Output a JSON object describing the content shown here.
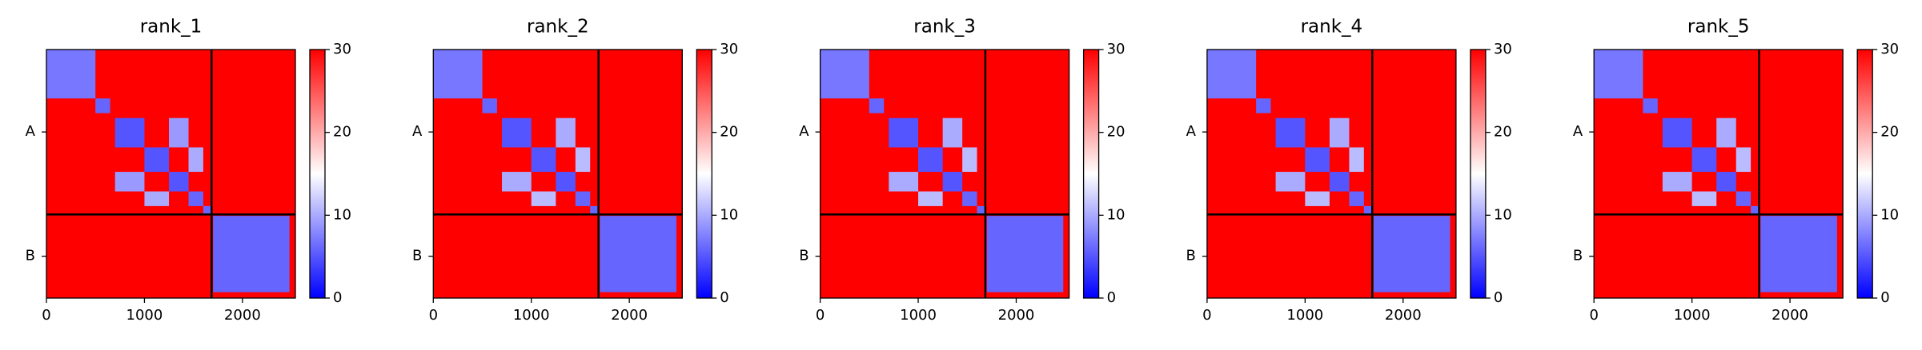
{
  "chart_data": [
    {
      "type": "heatmap",
      "title": "rank_1",
      "colormap": [
        "#0000ff",
        "#ffffff",
        "#ff0000"
      ],
      "clim": [
        0,
        30
      ],
      "cticks": [
        0,
        10,
        20,
        30
      ],
      "xlim": [
        0,
        2540
      ],
      "xticks": [
        0,
        1000,
        2000
      ],
      "chains": [
        {
          "name": "A",
          "range": [
            0,
            1685
          ]
        },
        {
          "name": "B",
          "range": [
            1685,
            2540
          ]
        }
      ],
      "background": 30,
      "blocks": [
        {
          "x": [
            0,
            500
          ],
          "y": [
            0,
            500
          ],
          "value": 7
        },
        {
          "x": [
            500,
            650
          ],
          "y": [
            500,
            650
          ],
          "value": 6
        },
        {
          "x": [
            700,
            1000
          ],
          "y": [
            700,
            1000
          ],
          "value": 5
        },
        {
          "x": [
            1000,
            1250
          ],
          "y": [
            1000,
            1250
          ],
          "value": 5
        },
        {
          "x": [
            1250,
            1450
          ],
          "y": [
            1250,
            1450
          ],
          "value": 5
        },
        {
          "x": [
            1450,
            1600
          ],
          "y": [
            1450,
            1600
          ],
          "value": 6
        },
        {
          "x": [
            1600,
            1685
          ],
          "y": [
            1600,
            1685
          ],
          "value": 6
        },
        {
          "x": [
            700,
            1000
          ],
          "y": [
            1250,
            1450
          ],
          "value": 9
        },
        {
          "x": [
            1250,
            1450
          ],
          "y": [
            700,
            1000
          ],
          "value": 9
        },
        {
          "x": [
            1000,
            1250
          ],
          "y": [
            1450,
            1600
          ],
          "value": 10
        },
        {
          "x": [
            1450,
            1600
          ],
          "y": [
            1000,
            1250
          ],
          "value": 10
        },
        {
          "x": [
            1700,
            2480
          ],
          "y": [
            1700,
            2480
          ],
          "value": 6
        }
      ]
    },
    {
      "type": "heatmap",
      "title": "rank_2",
      "colormap": [
        "#0000ff",
        "#ffffff",
        "#ff0000"
      ],
      "clim": [
        0,
        30
      ],
      "cticks": [
        0,
        10,
        20,
        30
      ],
      "xlim": [
        0,
        2540
      ],
      "xticks": [
        0,
        1000,
        2000
      ],
      "chains": [
        {
          "name": "A",
          "range": [
            0,
            1685
          ]
        },
        {
          "name": "B",
          "range": [
            1685,
            2540
          ]
        }
      ],
      "background": 30,
      "blocks": [
        {
          "x": [
            0,
            500
          ],
          "y": [
            0,
            500
          ],
          "value": 7
        },
        {
          "x": [
            500,
            650
          ],
          "y": [
            500,
            650
          ],
          "value": 6
        },
        {
          "x": [
            700,
            1000
          ],
          "y": [
            700,
            1000
          ],
          "value": 5
        },
        {
          "x": [
            1000,
            1250
          ],
          "y": [
            1000,
            1250
          ],
          "value": 5
        },
        {
          "x": [
            1250,
            1450
          ],
          "y": [
            1250,
            1450
          ],
          "value": 5
        },
        {
          "x": [
            1450,
            1600
          ],
          "y": [
            1450,
            1600
          ],
          "value": 6
        },
        {
          "x": [
            1600,
            1685
          ],
          "y": [
            1600,
            1685
          ],
          "value": 6
        },
        {
          "x": [
            700,
            1000
          ],
          "y": [
            1250,
            1450
          ],
          "value": 10
        },
        {
          "x": [
            1250,
            1450
          ],
          "y": [
            700,
            1000
          ],
          "value": 10
        },
        {
          "x": [
            1000,
            1250
          ],
          "y": [
            1450,
            1600
          ],
          "value": 11
        },
        {
          "x": [
            1450,
            1600
          ],
          "y": [
            1000,
            1250
          ],
          "value": 11
        },
        {
          "x": [
            1700,
            2480
          ],
          "y": [
            1700,
            2480
          ],
          "value": 6
        }
      ]
    },
    {
      "type": "heatmap",
      "title": "rank_3",
      "colormap": [
        "#0000ff",
        "#ffffff",
        "#ff0000"
      ],
      "clim": [
        0,
        30
      ],
      "cticks": [
        0,
        10,
        20,
        30
      ],
      "xlim": [
        0,
        2540
      ],
      "xticks": [
        0,
        1000,
        2000
      ],
      "chains": [
        {
          "name": "A",
          "range": [
            0,
            1685
          ]
        },
        {
          "name": "B",
          "range": [
            1685,
            2540
          ]
        }
      ],
      "background": 30,
      "blocks": [
        {
          "x": [
            0,
            500
          ],
          "y": [
            0,
            500
          ],
          "value": 7
        },
        {
          "x": [
            500,
            650
          ],
          "y": [
            500,
            650
          ],
          "value": 6
        },
        {
          "x": [
            700,
            1000
          ],
          "y": [
            700,
            1000
          ],
          "value": 5
        },
        {
          "x": [
            1000,
            1250
          ],
          "y": [
            1000,
            1250
          ],
          "value": 5
        },
        {
          "x": [
            1250,
            1450
          ],
          "y": [
            1250,
            1450
          ],
          "value": 5
        },
        {
          "x": [
            1450,
            1600
          ],
          "y": [
            1450,
            1600
          ],
          "value": 6
        },
        {
          "x": [
            1600,
            1685
          ],
          "y": [
            1600,
            1685
          ],
          "value": 6
        },
        {
          "x": [
            700,
            1000
          ],
          "y": [
            1250,
            1450
          ],
          "value": 10
        },
        {
          "x": [
            1250,
            1450
          ],
          "y": [
            700,
            1000
          ],
          "value": 10
        },
        {
          "x": [
            1000,
            1250
          ],
          "y": [
            1450,
            1600
          ],
          "value": 11
        },
        {
          "x": [
            1450,
            1600
          ],
          "y": [
            1000,
            1250
          ],
          "value": 11
        },
        {
          "x": [
            1700,
            2480
          ],
          "y": [
            1700,
            2480
          ],
          "value": 6
        }
      ]
    },
    {
      "type": "heatmap",
      "title": "rank_4",
      "colormap": [
        "#0000ff",
        "#ffffff",
        "#ff0000"
      ],
      "clim": [
        0,
        30
      ],
      "cticks": [
        0,
        10,
        20,
        30
      ],
      "xlim": [
        0,
        2540
      ],
      "xticks": [
        0,
        1000,
        2000
      ],
      "chains": [
        {
          "name": "A",
          "range": [
            0,
            1685
          ]
        },
        {
          "name": "B",
          "range": [
            1685,
            2540
          ]
        }
      ],
      "background": 30,
      "blocks": [
        {
          "x": [
            0,
            500
          ],
          "y": [
            0,
            500
          ],
          "value": 7
        },
        {
          "x": [
            500,
            650
          ],
          "y": [
            500,
            650
          ],
          "value": 6
        },
        {
          "x": [
            700,
            1000
          ],
          "y": [
            700,
            1000
          ],
          "value": 5
        },
        {
          "x": [
            1000,
            1250
          ],
          "y": [
            1000,
            1250
          ],
          "value": 5
        },
        {
          "x": [
            1250,
            1450
          ],
          "y": [
            1250,
            1450
          ],
          "value": 5
        },
        {
          "x": [
            1450,
            1600
          ],
          "y": [
            1450,
            1600
          ],
          "value": 6
        },
        {
          "x": [
            1600,
            1685
          ],
          "y": [
            1600,
            1685
          ],
          "value": 6
        },
        {
          "x": [
            700,
            1000
          ],
          "y": [
            1250,
            1450
          ],
          "value": 10
        },
        {
          "x": [
            1250,
            1450
          ],
          "y": [
            700,
            1000
          ],
          "value": 10
        },
        {
          "x": [
            1000,
            1250
          ],
          "y": [
            1450,
            1600
          ],
          "value": 11
        },
        {
          "x": [
            1450,
            1600
          ],
          "y": [
            1000,
            1250
          ],
          "value": 11
        },
        {
          "x": [
            1700,
            2480
          ],
          "y": [
            1700,
            2480
          ],
          "value": 6
        }
      ]
    },
    {
      "type": "heatmap",
      "title": "rank_5",
      "colormap": [
        "#0000ff",
        "#ffffff",
        "#ff0000"
      ],
      "clim": [
        0,
        30
      ],
      "cticks": [
        0,
        10,
        20,
        30
      ],
      "xlim": [
        0,
        2540
      ],
      "xticks": [
        0,
        1000,
        2000
      ],
      "chains": [
        {
          "name": "A",
          "range": [
            0,
            1685
          ]
        },
        {
          "name": "B",
          "range": [
            1685,
            2540
          ]
        }
      ],
      "background": 30,
      "blocks": [
        {
          "x": [
            0,
            500
          ],
          "y": [
            0,
            500
          ],
          "value": 7
        },
        {
          "x": [
            500,
            650
          ],
          "y": [
            500,
            650
          ],
          "value": 6
        },
        {
          "x": [
            700,
            1000
          ],
          "y": [
            700,
            1000
          ],
          "value": 5
        },
        {
          "x": [
            1000,
            1250
          ],
          "y": [
            1000,
            1250
          ],
          "value": 5
        },
        {
          "x": [
            1250,
            1450
          ],
          "y": [
            1250,
            1450
          ],
          "value": 5
        },
        {
          "x": [
            1450,
            1600
          ],
          "y": [
            1450,
            1600
          ],
          "value": 6
        },
        {
          "x": [
            1600,
            1685
          ],
          "y": [
            1600,
            1685
          ],
          "value": 6
        },
        {
          "x": [
            700,
            1000
          ],
          "y": [
            1250,
            1450
          ],
          "value": 10
        },
        {
          "x": [
            1250,
            1450
          ],
          "y": [
            700,
            1000
          ],
          "value": 10
        },
        {
          "x": [
            1000,
            1250
          ],
          "y": [
            1450,
            1600
          ],
          "value": 11
        },
        {
          "x": [
            1450,
            1600
          ],
          "y": [
            1000,
            1250
          ],
          "value": 11
        },
        {
          "x": [
            1700,
            2480
          ],
          "y": [
            1700,
            2480
          ],
          "value": 6
        }
      ]
    }
  ]
}
